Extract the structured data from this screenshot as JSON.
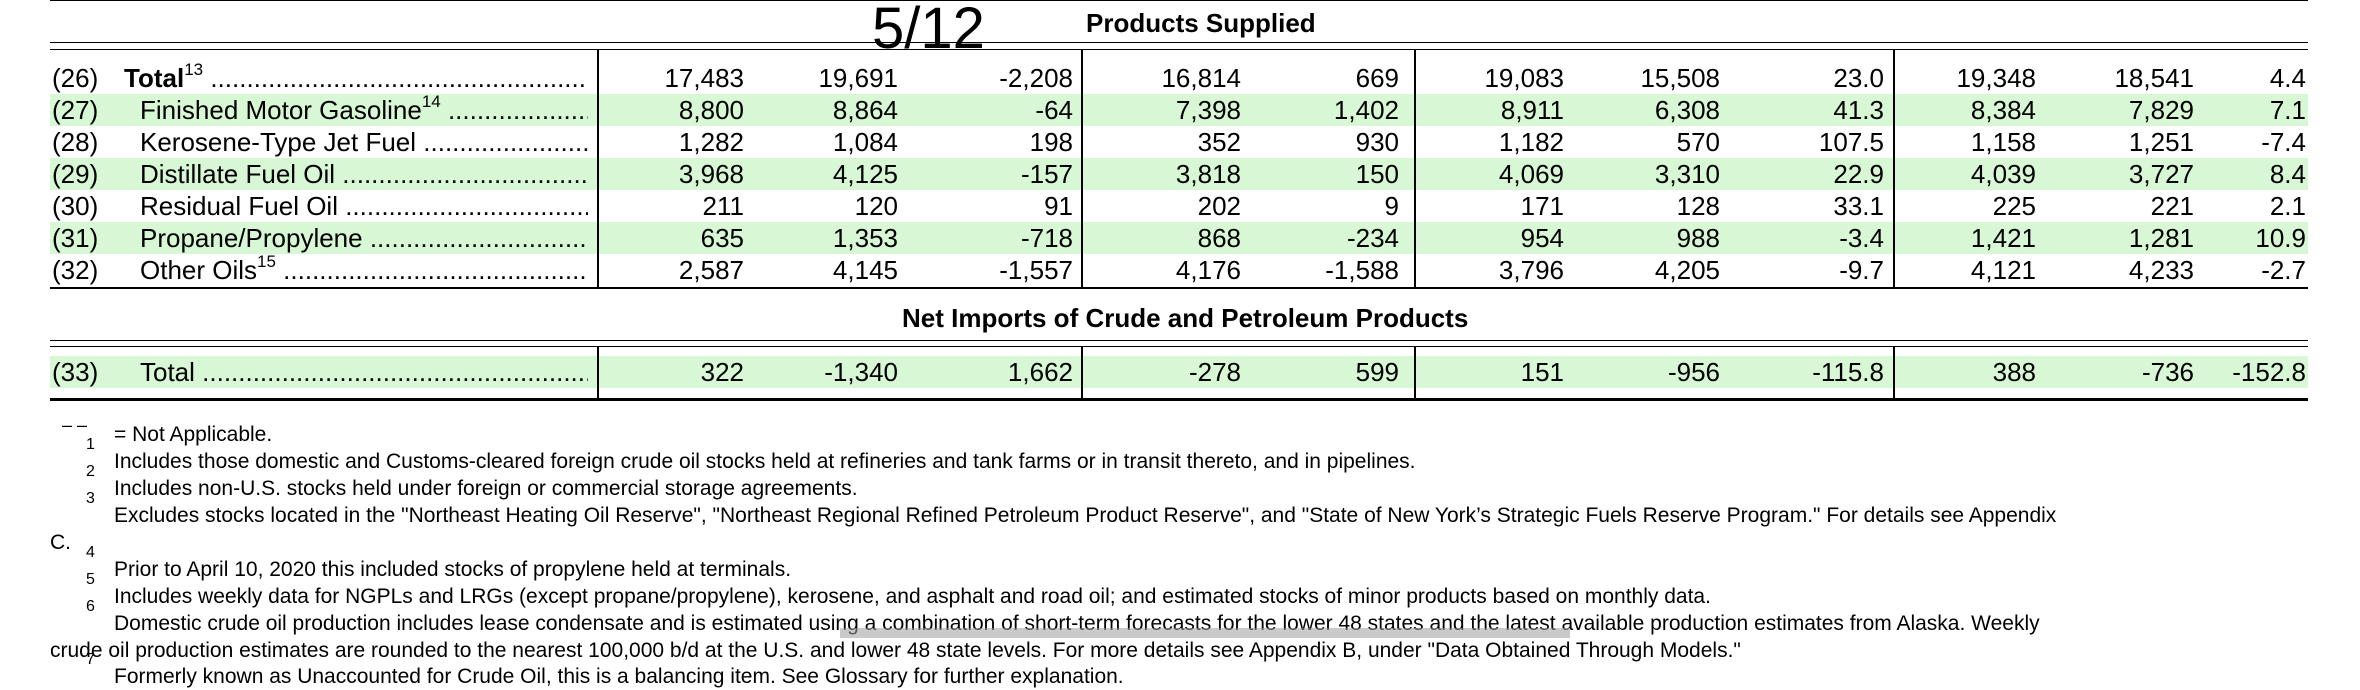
{
  "page": {
    "page_number": "5/12"
  },
  "sections": {
    "products_supplied": "Products Supplied",
    "net_imports": "Net Imports of Crude and Petroleum Products"
  },
  "colors": {
    "highlight_green": "#d7f7d5",
    "rule": "#000000",
    "gray_highlight": "#9e9e9e"
  },
  "rows": [
    {
      "num": "(26)",
      "label": "Total",
      "sup": "13",
      "bold": true,
      "green": false,
      "values": [
        "17,483",
        "19,691",
        "-2,208",
        "16,814",
        "669",
        "19,083",
        "15,508",
        "23.0",
        "19,348",
        "18,541",
        "4.4"
      ]
    },
    {
      "num": "(27)",
      "label": "Finished Motor Gasoline",
      "sup": "14",
      "bold": false,
      "green": true,
      "values": [
        "8,800",
        "8,864",
        "-64",
        "7,398",
        "1,402",
        "8,911",
        "6,308",
        "41.3",
        "8,384",
        "7,829",
        "7.1"
      ]
    },
    {
      "num": "(28)",
      "label": "Kerosene-Type Jet Fuel",
      "sup": "",
      "bold": false,
      "green": false,
      "values": [
        "1,282",
        "1,084",
        "198",
        "352",
        "930",
        "1,182",
        "570",
        "107.5",
        "1,158",
        "1,251",
        "-7.4"
      ]
    },
    {
      "num": "(29)",
      "label": "Distillate Fuel Oil",
      "sup": "",
      "bold": false,
      "green": true,
      "values": [
        "3,968",
        "4,125",
        "-157",
        "3,818",
        "150",
        "4,069",
        "3,310",
        "22.9",
        "4,039",
        "3,727",
        "8.4"
      ]
    },
    {
      "num": "(30)",
      "label": "Residual Fuel Oil",
      "sup": "",
      "bold": false,
      "green": false,
      "values": [
        "211",
        "120",
        "91",
        "202",
        "9",
        "171",
        "128",
        "33.1",
        "225",
        "221",
        "2.1"
      ]
    },
    {
      "num": "(31)",
      "label": "Propane/Propylene",
      "sup": "",
      "bold": false,
      "green": true,
      "values": [
        "635",
        "1,353",
        "-718",
        "868",
        "-234",
        "954",
        "988",
        "-3.4",
        "1,421",
        "1,281",
        "10.9"
      ]
    },
    {
      "num": "(32)",
      "label": "Other Oils",
      "sup": "15",
      "bold": false,
      "green": false,
      "values": [
        "2,587",
        "4,145",
        "-1,557",
        "4,176",
        "-1,588",
        "3,796",
        "4,205",
        "-9.7",
        "4,121",
        "4,233",
        "-2.7"
      ]
    }
  ],
  "net_imports_row": {
    "num": "(33)",
    "label": "Total",
    "green": true,
    "values": [
      "322",
      "-1,340",
      "1,662",
      "-278",
      "599",
      "151",
      "-956",
      "-115.8",
      "388",
      "-736",
      "-152.8"
    ]
  },
  "footnotes": {
    "na_symbol": "– –",
    "na_text": "= Not Applicable.",
    "items": [
      {
        "mark": "1",
        "text": "Includes those domestic and Customs-cleared foreign crude oil stocks held at refineries and tank farms or in transit thereto, and in pipelines."
      },
      {
        "mark": "2",
        "text": "Includes non-U.S. stocks held under foreign or commercial storage agreements."
      },
      {
        "mark": "3",
        "text": "Excludes stocks located in the \"Northeast Heating Oil Reserve\", \"Northeast Regional Refined Petroleum Product Reserve\", and \"State of New York’s Strategic Fuels Reserve Program.\" For details see Appendix",
        "cont": "C."
      },
      {
        "mark": "4",
        "text": "Prior to April 10, 2020 this included stocks of propylene held at terminals."
      },
      {
        "mark": "5",
        "text": "Includes weekly data for NGPLs and LRGs (except propane/propylene), kerosene, and asphalt and road oil; and estimated stocks of minor products based on monthly data."
      },
      {
        "mark": "6",
        "text": "Domestic crude oil production includes lease condensate and is estimated using a combination of short-term forecasts for the lower 48 states and the latest available production estimates from Alaska. Weekly",
        "cont": "crude oil production estimates are rounded to the nearest 100,000 b/d at the U.S. and lower 48 state levels. For more details see Appendix B, under \"Data Obtained Through Models.\""
      },
      {
        "mark": "7",
        "text": "Formerly known as Unaccounted for Crude Oil, this is a balancing item. See Glossary for further explanation."
      }
    ]
  }
}
